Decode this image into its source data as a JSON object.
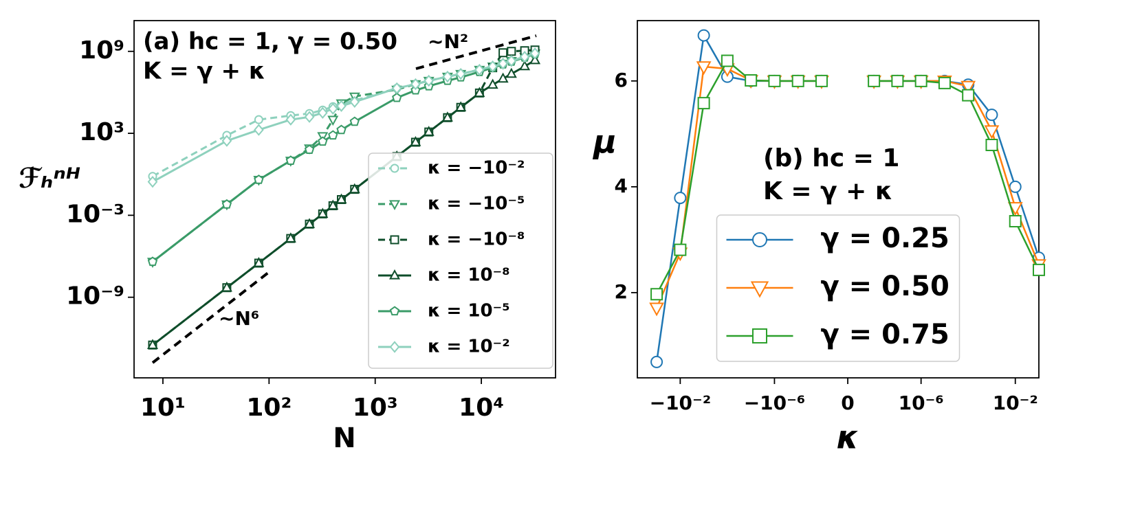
{
  "chart_data": [
    {
      "type": "line",
      "annotations": [
        "(a) hc = 1, γ = 0.50",
        "K = γ + κ",
        "∼N²",
        "∼N⁶"
      ],
      "xlabel": "N",
      "ylabel": "ℱₕⁿᴴ",
      "xscale": "log",
      "yscale": "log",
      "x": [
        8,
        40,
        80,
        160,
        240,
        320,
        400,
        480,
        640,
        1600,
        2400,
        3200,
        4800,
        6400,
        9600,
        12800,
        16000,
        19200,
        25600,
        32000
      ],
      "xlim": [
        5.35,
        50000
      ],
      "ylim": [
        1.26e-15,
        178000000000.0
      ],
      "xticks": [
        {
          "value": 10,
          "label": "10¹"
        },
        {
          "value": 100,
          "label": "10²"
        },
        {
          "value": 1000,
          "label": "10³"
        },
        {
          "value": 10000,
          "label": "10⁴"
        }
      ],
      "yticks": [
        {
          "value": 1e-09,
          "label": "10⁻⁹"
        },
        {
          "value": 0.001,
          "label": "10⁻³"
        },
        {
          "value": 1000,
          "label": "10³"
        },
        {
          "value": 1000000000,
          "label": "10⁹"
        }
      ],
      "legend": "lower right",
      "series": [
        {
          "name": "κ = −10⁻²",
          "color": "#8ed1bd",
          "linestyle": "dashed",
          "marker": "circle",
          "values": [
            0.708,
            708,
            10000,
            20000,
            28200,
            50100,
            89100,
            141000,
            251000,
            2000000,
            3980000,
            7080000,
            14100000,
            22400000,
            44700000,
            79400000,
            126000000,
            200000000,
            398000000,
            708000000
          ]
        },
        {
          "name": "κ = −10⁻⁵",
          "color": "#3a9b68",
          "linestyle": "dashed",
          "marker": "triangle-down",
          "values": [
            3.98e-07,
            0.00631,
            0.398,
            10,
            79.4,
            631,
            10000,
            158000,
            501000,
            1580000,
            3980000,
            7080000,
            14100000,
            22400000,
            44700000,
            79400000,
            126000000,
            200000000,
            398000000,
            708000000
          ]
        },
        {
          "name": "κ = −10⁻⁸",
          "color": "#0e4d2a",
          "linestyle": "dashed",
          "marker": "square",
          "values": [
            3.16e-13,
            5.01e-09,
            3.16e-07,
            2e-05,
            0.000224,
            0.00126,
            0.00501,
            0.0141,
            0.0794,
            20,
            224,
            1260,
            14100,
            79400,
            891000,
            63100000,
            794000000,
            1000000000,
            1120000000,
            1260000000
          ]
        },
        {
          "name": "κ = 10⁻⁸",
          "color": "#0e4d2a",
          "linestyle": "solid",
          "marker": "triangle-up",
          "values": [
            3.16e-13,
            5.01e-09,
            3.16e-07,
            2e-05,
            0.000224,
            0.00126,
            0.00501,
            0.0141,
            0.0794,
            20,
            224,
            1260,
            14100,
            79400,
            891000,
            3550000,
            10000000,
            22400000,
            79400000,
            224000000
          ]
        },
        {
          "name": "κ = 10⁻⁵",
          "color": "#3a9b68",
          "linestyle": "solid",
          "marker": "pentagon",
          "values": [
            3.98e-07,
            0.00631,
            0.398,
            10,
            63.1,
            251,
            708,
            1780,
            7080,
            398000,
            1410000,
            2820000,
            7080000,
            12600000,
            31600000,
            63100000,
            112000000,
            178000000,
            355000000,
            631000000
          ]
        },
        {
          "name": "κ = 10⁻²",
          "color": "#8ed1bd",
          "linestyle": "solid",
          "marker": "diamond",
          "values": [
            0.282,
            282,
            1780,
            10000,
            15800,
            31600,
            63100,
            100000,
            200000,
            2000000,
            3980000,
            7080000,
            14100000,
            22400000,
            44700000,
            79400000,
            126000000,
            200000000,
            398000000,
            708000000
          ]
        }
      ]
    },
    {
      "type": "line",
      "annotations": [
        "(b) hc = 1",
        "K = γ + κ"
      ],
      "xlabel": "κ",
      "ylabel": "μ",
      "xscale": "symlog",
      "linthresh": 1e-08,
      "x": [
        -0.1,
        -0.01,
        -0.001,
        -0.0001,
        -1e-05,
        -1e-06,
        -1e-07,
        -1e-08,
        0,
        1e-08,
        1e-07,
        1e-06,
        1e-05,
        0.0001,
        0.001,
        0.01,
        0.1
      ],
      "xlim": [
        -0.66,
        0.1
      ],
      "ylim": [
        0.39,
        7.14
      ],
      "xticks": [
        {
          "value": -0.01,
          "label": "−10⁻²"
        },
        {
          "value": -1e-06,
          "label": "−10⁻⁶"
        },
        0,
        {
          "value": 1e-06,
          "label": "10⁻⁶"
        },
        {
          "value": 0.01,
          "label": "10⁻²"
        }
      ],
      "yticks": [
        2,
        4,
        6
      ],
      "legend": "lower center",
      "series": [
        {
          "name": "γ = 0.25",
          "color": "#1f77b4",
          "linestyle": "solid",
          "marker": "circle",
          "values": [
            0.69,
            3.79,
            6.86,
            6.08,
            6.0,
            6.0,
            6.0,
            6.0,
            null,
            6.0,
            6.0,
            6.0,
            6.0,
            5.93,
            5.36,
            4.0,
            2.66
          ]
        },
        {
          "name": "γ = 0.50",
          "color": "#ff7f0e",
          "linestyle": "solid",
          "marker": "triangle-down",
          "values": [
            1.71,
            2.75,
            6.27,
            6.23,
            6.01,
            6.0,
            6.0,
            6.0,
            null,
            6.0,
            6.0,
            6.0,
            6.0,
            5.9,
            5.06,
            3.61,
            2.53
          ]
        },
        {
          "name": "γ = 0.75",
          "color": "#2ca02c",
          "linestyle": "solid",
          "marker": "square",
          "values": [
            1.97,
            2.81,
            5.58,
            6.38,
            6.01,
            6.0,
            6.0,
            6.0,
            null,
            6.0,
            6.0,
            6.0,
            5.96,
            5.73,
            4.79,
            3.35,
            2.43
          ]
        }
      ]
    }
  ]
}
